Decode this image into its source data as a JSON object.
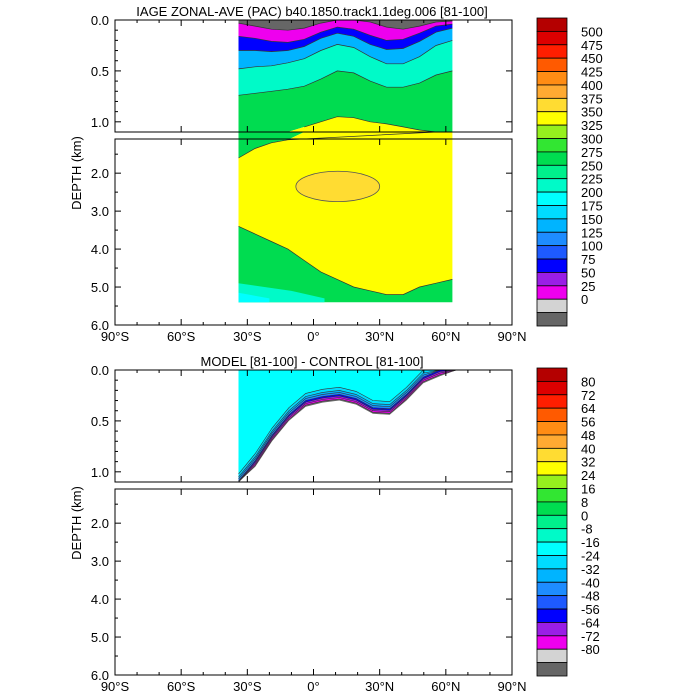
{
  "chart_data": [
    {
      "type": "heatmap",
      "title": "IAGE ZONAL-AVE (PAC) b40.1850.track1.1deg.006 [81-100]",
      "ylabel": "DEPTH (km)",
      "x_tick_labels": [
        "90°S",
        "60°S",
        "30°S",
        "0°",
        "30°N",
        "60°N",
        "90°N"
      ],
      "y_ticks_upper": [
        "0.0",
        "0.5",
        "1.0"
      ],
      "y_ticks_lower": [
        "2.0",
        "3.0",
        "4.0",
        "5.0",
        "6.0"
      ],
      "xlim": [
        -90,
        90
      ],
      "ylim_upper_km": [
        0,
        1.1
      ],
      "ylim_lower_km": [
        1.1,
        6.0
      ],
      "data_lat_range": [
        -34,
        63
      ],
      "levels": [
        0,
        25,
        50,
        75,
        100,
        125,
        150,
        175,
        200,
        225,
        250,
        275,
        300,
        325,
        350,
        375,
        400,
        425,
        450,
        475,
        500
      ],
      "colorbar_labels": [
        "500",
        "475",
        "450",
        "425",
        "400",
        "375",
        "350",
        "325",
        "300",
        "275",
        "250",
        "225",
        "200",
        "175",
        "150",
        "125",
        "100",
        "75",
        "50",
        "25",
        "0"
      ],
      "colors": [
        "#666666",
        "#d3d3d3",
        "#ee00ee",
        "#9a1ee6",
        "#0000ff",
        "#1e5aff",
        "#1e8cff",
        "#00b4ff",
        "#00dcff",
        "#00ffff",
        "#00fac8",
        "#00f08c",
        "#00dc50",
        "#32e632",
        "#96f01e",
        "#ffff00",
        "#ffdc32",
        "#ffaa32",
        "#ff8c14",
        "#ff5a00",
        "#ff1e00",
        "#dc0000",
        "#b40000"
      ],
      "contour_lines": [
        {
          "level": 50,
          "depth_km": [
            0.03,
            0.06,
            0.09,
            0.1,
            0.08,
            0.03,
            0.0,
            0.0,
            0.02,
            0.07,
            0.09,
            0.06,
            0.02,
            0.01
          ]
        },
        {
          "level": 100,
          "depth_km": [
            0.16,
            0.18,
            0.21,
            0.22,
            0.19,
            0.12,
            0.07,
            0.09,
            0.15,
            0.2,
            0.19,
            0.13,
            0.06,
            0.04
          ]
        },
        {
          "level": 150,
          "depth_km": [
            0.3,
            0.3,
            0.31,
            0.3,
            0.26,
            0.18,
            0.13,
            0.16,
            0.24,
            0.29,
            0.28,
            0.21,
            0.12,
            0.08
          ]
        },
        {
          "level": 200,
          "depth_km": [
            0.48,
            0.46,
            0.45,
            0.42,
            0.38,
            0.3,
            0.24,
            0.27,
            0.36,
            0.43,
            0.43,
            0.36,
            0.25,
            0.2
          ]
        },
        {
          "level": 250,
          "depth_km": [
            0.74,
            0.72,
            0.7,
            0.68,
            0.65,
            0.58,
            0.5,
            0.52,
            0.6,
            0.66,
            0.66,
            0.62,
            0.54,
            0.5
          ]
        },
        {
          "level": 300,
          "depth_km": [
            1.6,
            1.35,
            1.2,
            1.12,
            1.05,
            1.0,
            0.95,
            0.96,
            1.0,
            1.02,
            1.05,
            1.08,
            1.1,
            1.1
          ]
        },
        {
          "level": 325,
          "depth_km": [
            3.4,
            3.6,
            3.8,
            4.0,
            4.3,
            4.6,
            4.8,
            5.0,
            5.1,
            5.2,
            5.2,
            5.0,
            4.9,
            4.8
          ]
        }
      ],
      "inner_contour_350": {
        "lat_range": [
          -8,
          30
        ],
        "depth_range_km": [
          1.95,
          2.75
        ]
      }
    },
    {
      "type": "heatmap",
      "title": "MODEL [81-100] - CONTROL [81-100]",
      "ylabel": "DEPTH (km)",
      "x_tick_labels": [
        "90°S",
        "60°S",
        "30°S",
        "0°",
        "30°N",
        "60°N",
        "90°N"
      ],
      "y_ticks_upper": [
        "0.0",
        "0.5",
        "1.0"
      ],
      "y_ticks_lower": [
        "2.0",
        "3.0",
        "4.0",
        "5.0",
        "6.0"
      ],
      "xlim": [
        -90,
        90
      ],
      "ylim_upper_km": [
        0,
        1.1
      ],
      "ylim_lower_km": [
        1.1,
        6.0
      ],
      "data_lat_range": [
        -34,
        65
      ],
      "levels": [
        -80,
        -72,
        -64,
        -56,
        -48,
        -40,
        -32,
        -24,
        -16,
        -8,
        0,
        8,
        16,
        24,
        32,
        40,
        48,
        56,
        64,
        72,
        80
      ],
      "colorbar_labels": [
        "80",
        "72",
        "64",
        "56",
        "48",
        "40",
        "32",
        "24",
        "16",
        "8",
        "0",
        "-8",
        "-16",
        "-24",
        "-32",
        "-40",
        "-48",
        "-56",
        "-64",
        "-72",
        "-80"
      ],
      "colors": [
        "#666666",
        "#d3d3d3",
        "#ee00ee",
        "#9a1ee6",
        "#0000ff",
        "#1e5aff",
        "#1e8cff",
        "#00b4ff",
        "#00dcff",
        "#00ffff",
        "#00fac8",
        "#00f08c",
        "#00dc50",
        "#32e632",
        "#96f01e",
        "#ffff00",
        "#ffdc32",
        "#ffaa32",
        "#ff8c14",
        "#ff5a00",
        "#ff1e00",
        "#dc0000",
        "#b40000"
      ],
      "anomaly_bottom_km": [
        1.15,
        0.95,
        0.7,
        0.5,
        0.36,
        0.32,
        0.3,
        0.34,
        0.43,
        0.44,
        0.3,
        0.13,
        0.06,
        0.0
      ],
      "contour_lines": [
        {
          "level": -8,
          "offset_km": 0.13
        },
        {
          "level": -16,
          "offset_km": 0.1
        },
        {
          "level": -24,
          "offset_km": 0.08
        },
        {
          "level": -32,
          "offset_km": 0.06
        },
        {
          "level": -40,
          "offset_km": 0.045
        },
        {
          "level": -56,
          "offset_km": 0.03
        },
        {
          "level": -72,
          "offset_km": 0.015
        }
      ]
    }
  ]
}
